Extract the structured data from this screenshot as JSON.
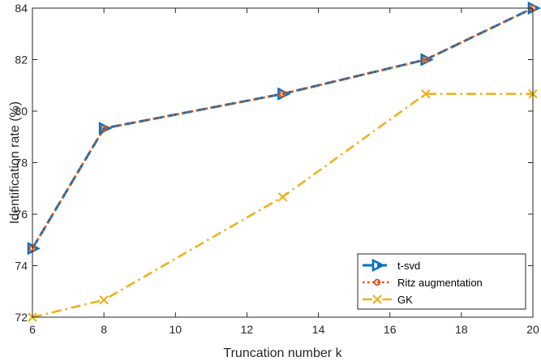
{
  "chart_data": {
    "type": "line",
    "title": "",
    "xlabel": "Truncation number k",
    "ylabel": "Identification rate (%)",
    "xlim": [
      6,
      20
    ],
    "ylim": [
      72,
      84
    ],
    "xticks": [
      6,
      8,
      10,
      12,
      14,
      16,
      18,
      20
    ],
    "yticks": [
      72,
      74,
      76,
      78,
      80,
      82,
      84
    ],
    "grid": false,
    "legend_position": "bottom-right",
    "x": [
      6,
      8,
      13,
      17,
      20
    ],
    "series": [
      {
        "name": "t-svd",
        "values": [
          74.67,
          79.33,
          80.67,
          82.0,
          84.0
        ],
        "color": "#0072BD",
        "style": "dashed",
        "marker": "triangle-right"
      },
      {
        "name": "Ritz augmentation",
        "values": [
          74.67,
          79.33,
          80.67,
          82.0,
          84.0
        ],
        "color": "#D95319",
        "style": "dotted",
        "marker": "circle"
      },
      {
        "name": "GK",
        "values": [
          72.0,
          72.67,
          76.67,
          80.67,
          80.67
        ],
        "color": "#EDB120",
        "style": "dashdot",
        "marker": "x"
      }
    ]
  }
}
